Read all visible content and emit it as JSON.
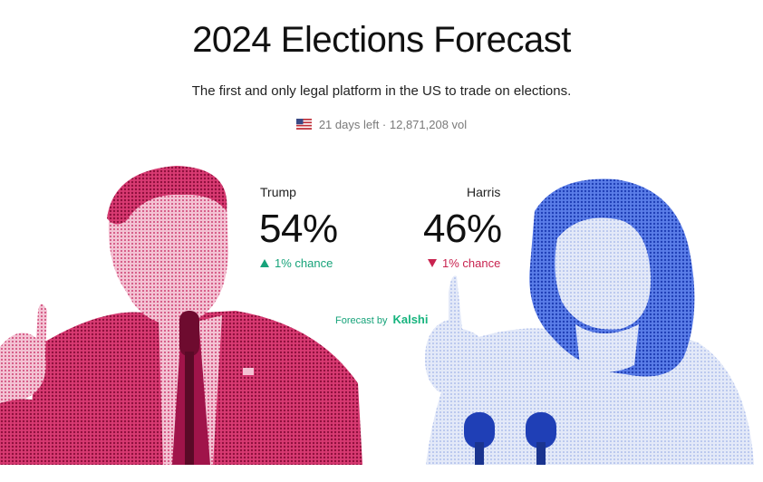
{
  "header": {
    "title": "2024 Elections Forecast",
    "subtitle": "The first and only legal platform in the US to trade on elections.",
    "meta": "21 days left · 12,871,208 vol",
    "flag_icon": "us-flag-icon"
  },
  "candidates": [
    {
      "name": "Trump",
      "percent": "54%",
      "change": "1% chance",
      "direction": "up",
      "color": "#c21a55"
    },
    {
      "name": "Harris",
      "percent": "46%",
      "change": "1% chance",
      "direction": "down",
      "color": "#2f56d6"
    }
  ],
  "forecast": {
    "label": "Forecast by",
    "brand": "Kalshi"
  },
  "colors": {
    "up": "#17a37a",
    "down": "#c8234f",
    "brand": "#17b47e"
  }
}
